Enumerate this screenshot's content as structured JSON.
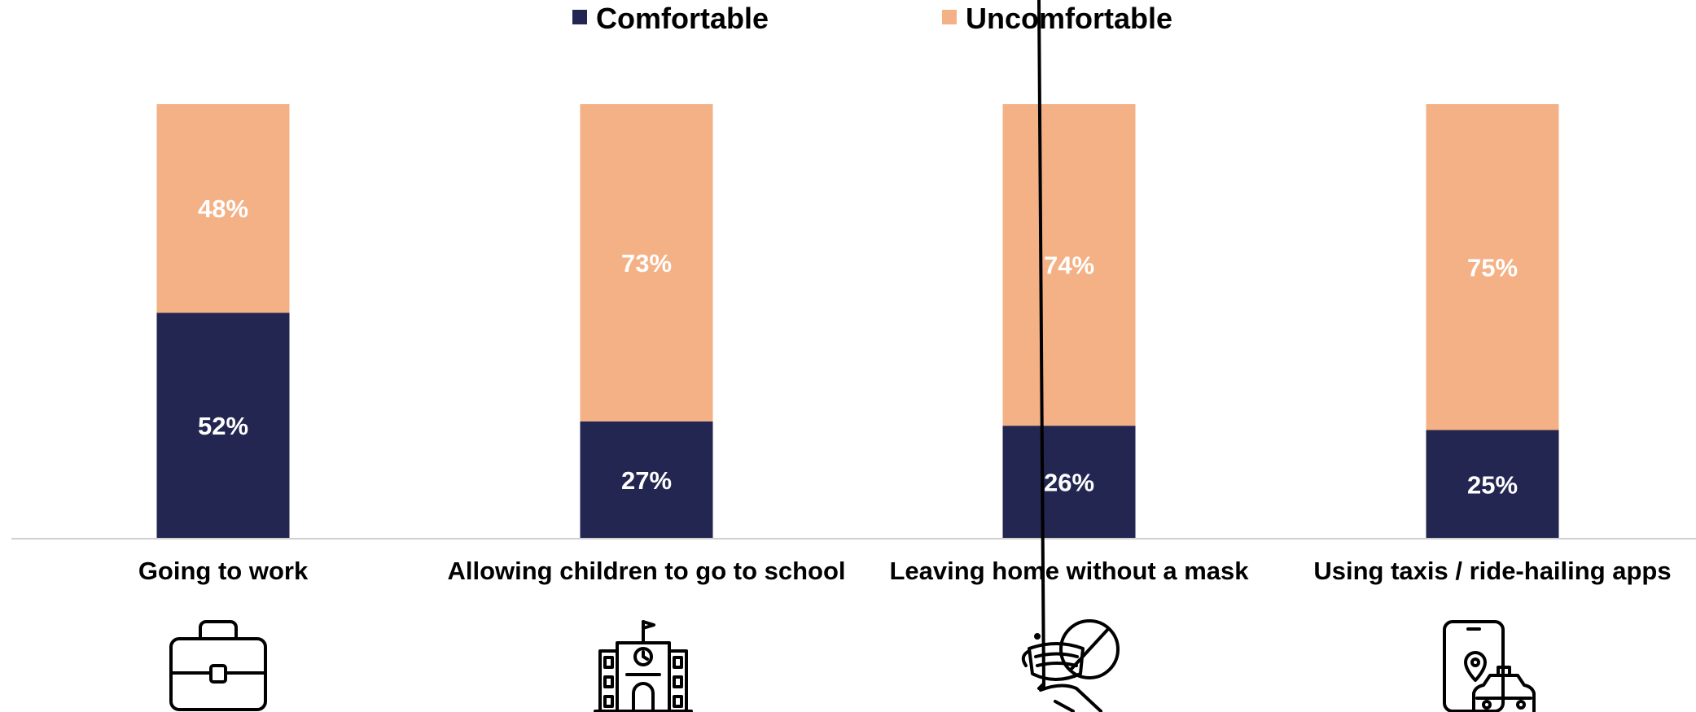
{
  "chart_data": {
    "type": "bar",
    "stacked": true,
    "percent_stacked": true,
    "categories": [
      "Going to work",
      "Allowing children to go to school",
      "Leaving home without a mask",
      "Using taxis / ride-hailing apps"
    ],
    "series": [
      {
        "name": "Comfortable",
        "color": "#232651",
        "values": [
          52,
          27,
          26,
          25
        ],
        "labels": [
          "52%",
          "27%",
          "26%",
          "25%"
        ]
      },
      {
        "name": "Uncomfortable",
        "color": "#F4B185",
        "values": [
          48,
          73,
          74,
          75
        ],
        "labels": [
          "48%",
          "73%",
          "74%",
          "75%"
        ]
      }
    ],
    "ylim": [
      0,
      100
    ],
    "title": "",
    "xlabel": "",
    "ylabel": "",
    "grid": false,
    "legend_position": "top-center",
    "category_icons": [
      "briefcase-icon",
      "school-building-icon",
      "no-mask-icon",
      "taxi-app-icon"
    ]
  }
}
